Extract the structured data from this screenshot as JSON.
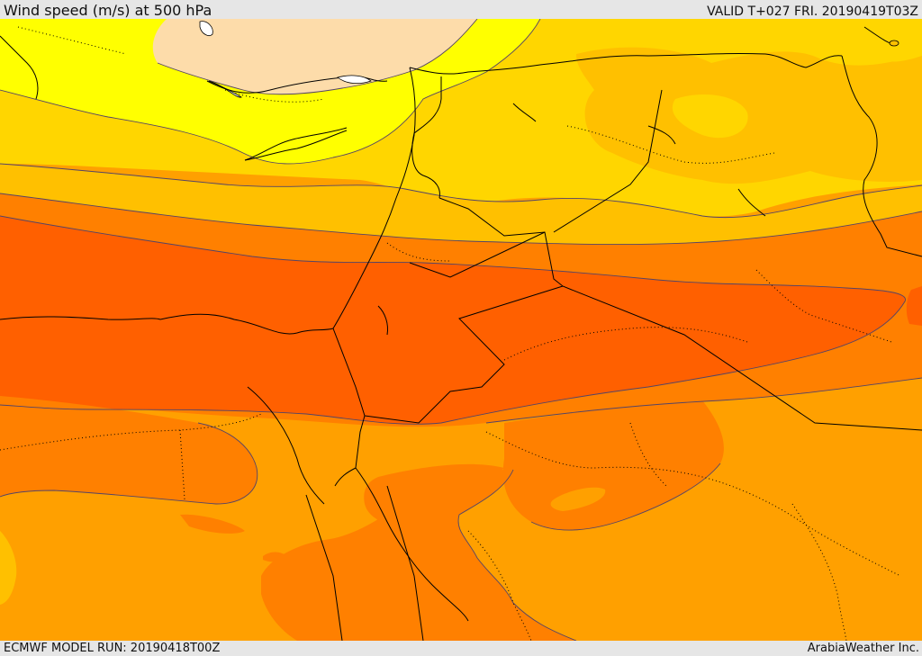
{
  "header": {
    "title": "Wind speed (m/s) at 500 hPa",
    "valid": "VALID T+027 FRI. 20190419T03Z"
  },
  "footer": {
    "model_run": "ECMWF MODEL RUN: 20190418T00Z",
    "credit": "ArabiaWeather Inc."
  },
  "map": {
    "field": "wind speed at 500 hPa",
    "bands": [
      {
        "name": "calm-north",
        "color": "#fddcaa"
      },
      {
        "name": "yellow",
        "color": "#ffff00"
      },
      {
        "name": "light-gold",
        "color": "#ffd600"
      },
      {
        "name": "gold",
        "color": "#ffc000"
      },
      {
        "name": "orange",
        "color": "#ffa000"
      },
      {
        "name": "dark-orange",
        "color": "#ff8000"
      },
      {
        "name": "jet-core",
        "color": "#ff6000"
      }
    ],
    "country_border_color": "#000000",
    "region_border_color": "#000000",
    "contour_color": "#554466"
  }
}
